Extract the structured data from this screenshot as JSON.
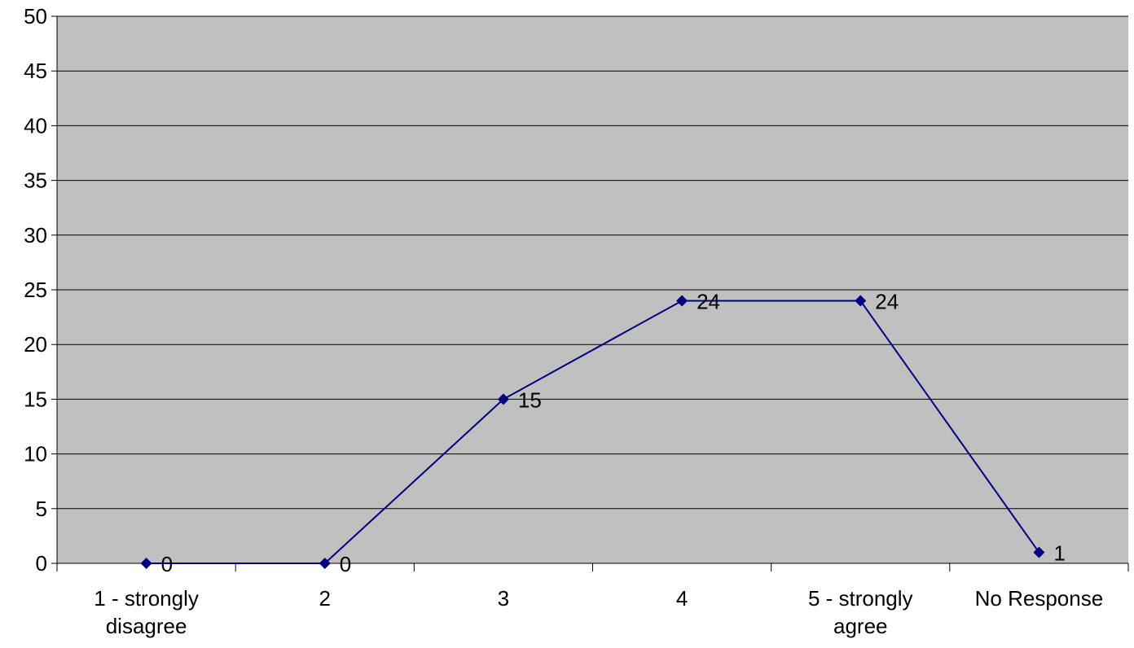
{
  "chart_data": {
    "type": "line",
    "categories": [
      [
        "1 - strongly",
        "disagree"
      ],
      [
        "2"
      ],
      [
        "3"
      ],
      [
        "4"
      ],
      [
        "5 - strongly",
        "agree"
      ],
      [
        "No Response"
      ]
    ],
    "values": [
      0,
      0,
      15,
      24,
      24,
      1
    ],
    "data_labels": [
      "0",
      "0",
      "15",
      "24",
      "24",
      "1"
    ],
    "ylim": [
      0,
      50
    ],
    "yticks": [
      0,
      5,
      10,
      15,
      20,
      25,
      30,
      35,
      40,
      45,
      50
    ],
    "grid": true,
    "legend": "none",
    "colors": {
      "plot_background": "#c0c0c0",
      "line": "#000080",
      "marker": "#000080",
      "gridline": "#000000",
      "axis": "#000000"
    }
  }
}
